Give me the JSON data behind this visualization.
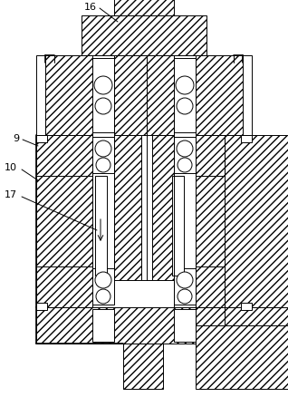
{
  "bg_color": "#ffffff",
  "lw": 0.7,
  "tlw": 1.2,
  "hatch": "////",
  "figsize": [
    3.18,
    4.39
  ],
  "dpi": 100,
  "label_fs": 8
}
